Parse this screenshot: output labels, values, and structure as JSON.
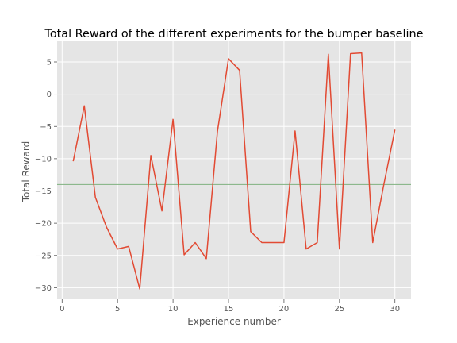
{
  "chart_data": {
    "type": "line",
    "title": "Total Reward of the different experiments for the bumper baseline",
    "xlabel": "Experience number",
    "ylabel": "Total Reward",
    "xlim": [
      -0.45,
      31.45
    ],
    "ylim": [
      -31.8,
      8.2
    ],
    "xticks": [
      0,
      5,
      10,
      15,
      20,
      25,
      30
    ],
    "yticks": [
      -30,
      -25,
      -20,
      -15,
      -10,
      -5,
      0,
      5
    ],
    "xtick_labels": [
      "0",
      "5",
      "10",
      "15",
      "20",
      "25",
      "30"
    ],
    "ytick_labels": [
      "−30",
      "−25",
      "−20",
      "−15",
      "−10",
      "−5",
      "0",
      "5"
    ],
    "grid": true,
    "series": [
      {
        "color": "#E24A33",
        "x": [
          1,
          2,
          3,
          4,
          5,
          6,
          7,
          8,
          9,
          10,
          11,
          12,
          13,
          14,
          15,
          16,
          17,
          18,
          19,
          20,
          21,
          22,
          23,
          24,
          25,
          26,
          27,
          28,
          29,
          30
        ],
        "values": [
          -10.4,
          -1.8,
          -16,
          -20.6,
          -24,
          -23.6,
          -30.2,
          -9.5,
          -18.1,
          -3.9,
          -24.9,
          -23,
          -25.5,
          -5.8,
          5.5,
          3.7,
          -21.3,
          -23,
          -23,
          -23,
          -5.7,
          -24,
          -23,
          6.2,
          -24,
          6.3,
          6.4,
          -23,
          -14,
          -5.5
        ]
      }
    ],
    "hline": {
      "value": -14,
      "color": "#7FB27F"
    }
  }
}
